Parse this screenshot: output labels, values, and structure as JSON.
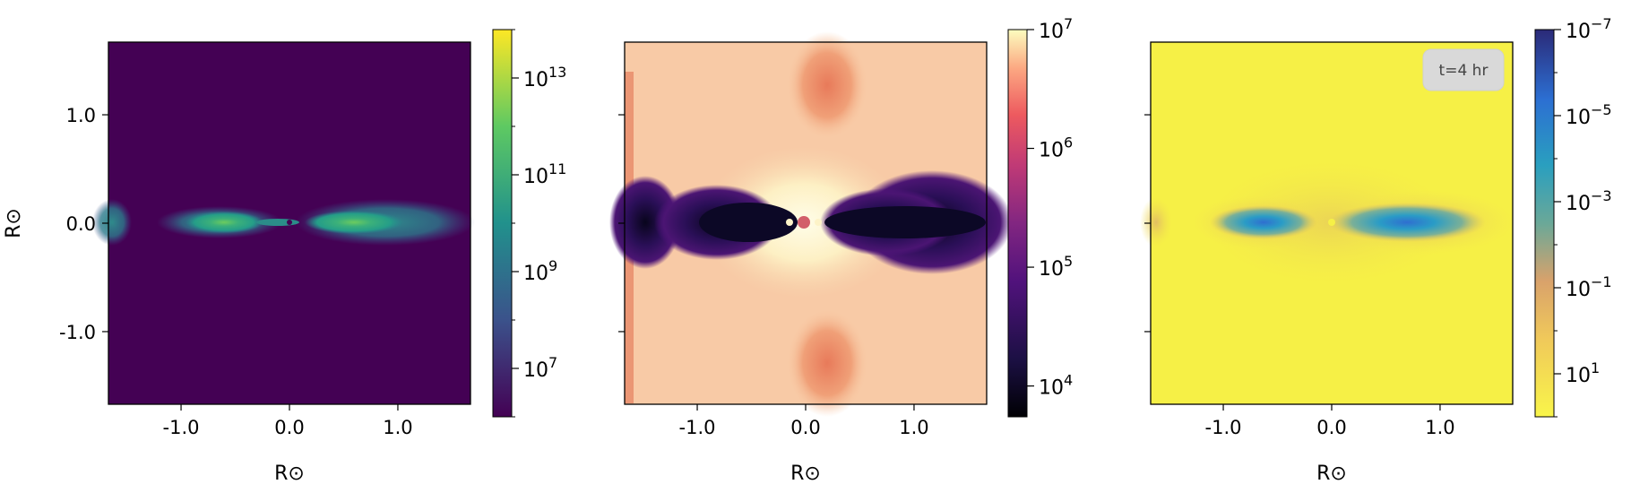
{
  "chart_data": [
    {
      "type": "heatmap",
      "colormap": "viridis",
      "xlabel": "R⊙",
      "ylabel": "R⊙",
      "xlim": [
        -1.67,
        1.67
      ],
      "ylim": [
        -1.67,
        1.67
      ],
      "xticks": [
        {
          "value": -1.0,
          "label": "-1.0"
        },
        {
          "value": 0.0,
          "label": "0.0"
        },
        {
          "value": 1.0,
          "label": "1.0"
        }
      ],
      "yticks": [
        {
          "value": 1.0,
          "label": "1.0"
        },
        {
          "value": 0.0,
          "label": "0.0"
        },
        {
          "value": -1.0,
          "label": "-1.0"
        }
      ],
      "colorbar": {
        "scale": "log",
        "range": [
          1000000.0,
          100000000000000.0
        ],
        "ticks": [
          {
            "base": "10",
            "exp": "7",
            "value": 10000000.0
          },
          {
            "base": "10",
            "exp": "9",
            "value": 1000000000.0
          },
          {
            "base": "10",
            "exp": "11",
            "value": 100000000000.0
          },
          {
            "base": "10",
            "exp": "13",
            "value": 10000000000000.0
          }
        ]
      }
    },
    {
      "type": "heatmap",
      "colormap": "magma",
      "xlabel": "R⊙",
      "ylabel": "",
      "xlim": [
        -1.67,
        1.67
      ],
      "ylim": [
        -1.67,
        1.67
      ],
      "xticks": [
        {
          "value": -1.0,
          "label": "-1.0"
        },
        {
          "value": 0.0,
          "label": "0.0"
        },
        {
          "value": 1.0,
          "label": "1.0"
        }
      ],
      "yticks": [
        {
          "value": 1.0,
          "label": ""
        },
        {
          "value": 0.0,
          "label": ""
        },
        {
          "value": -1.0,
          "label": ""
        }
      ],
      "colorbar": {
        "scale": "log",
        "range": [
          5500.0,
          10000000.0
        ],
        "ticks": [
          {
            "base": "10",
            "exp": "4",
            "value": 10000.0
          },
          {
            "base": "10",
            "exp": "5",
            "value": 100000.0
          },
          {
            "base": "10",
            "exp": "6",
            "value": 1000000.0
          },
          {
            "base": "10",
            "exp": "7",
            "value": 10000000.0
          }
        ]
      }
    },
    {
      "type": "heatmap",
      "colormap": "plasma",
      "xlabel": "R⊙",
      "ylabel": "",
      "xlim": [
        -1.67,
        1.67
      ],
      "ylim": [
        -1.67,
        1.67
      ],
      "xticks": [
        {
          "value": -1.0,
          "label": "-1.0"
        },
        {
          "value": 0.0,
          "label": "0.0"
        },
        {
          "value": 1.0,
          "label": "1.0"
        }
      ],
      "yticks": [
        {
          "value": 1.0,
          "label": ""
        },
        {
          "value": 0.0,
          "label": ""
        },
        {
          "value": -1.0,
          "label": ""
        }
      ],
      "annotation": "t=4 hr",
      "colorbar": {
        "scale": "log",
        "reversed": true,
        "range": [
          1e-07,
          100.0
        ],
        "ticks": [
          {
            "base": "10",
            "exp": "1",
            "value": 10.0
          },
          {
            "base": "10",
            "exp": "−1",
            "value": 0.1
          },
          {
            "base": "10",
            "exp": "−3",
            "value": 0.001
          },
          {
            "base": "10",
            "exp": "−5",
            "value": 1e-05
          },
          {
            "base": "10",
            "exp": "−7",
            "value": 1e-07
          }
        ]
      }
    }
  ]
}
